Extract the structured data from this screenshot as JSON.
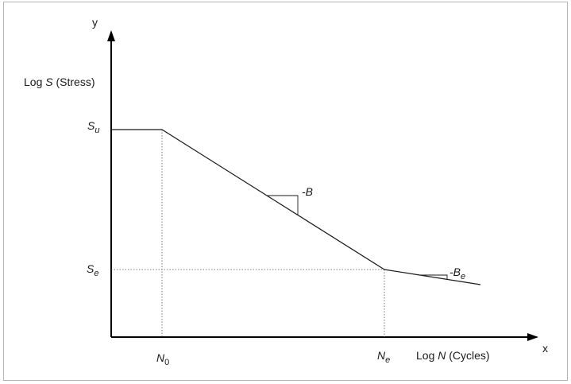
{
  "axes": {
    "x_letter": "x",
    "y_letter": "y",
    "y_title": {
      "pre": "Log ",
      "var": "S",
      "post": " (Stress)"
    },
    "x_title": {
      "pre": "Log ",
      "var": "N",
      "post": " (Cycles)"
    }
  },
  "points": {
    "Su": {
      "main": "S",
      "sub": "u"
    },
    "Se": {
      "main": "S",
      "sub": "e"
    },
    "N0": {
      "main": "N",
      "sub": "0"
    },
    "Ne": {
      "main": "N",
      "sub": "e"
    }
  },
  "slopes": {
    "steep": {
      "text": "-B"
    },
    "shallow": {
      "main": "-B",
      "sub": "e"
    }
  },
  "colors": {
    "line": "#1a1a1a",
    "guide": "#555555",
    "frame": "#b5b5b5"
  }
}
